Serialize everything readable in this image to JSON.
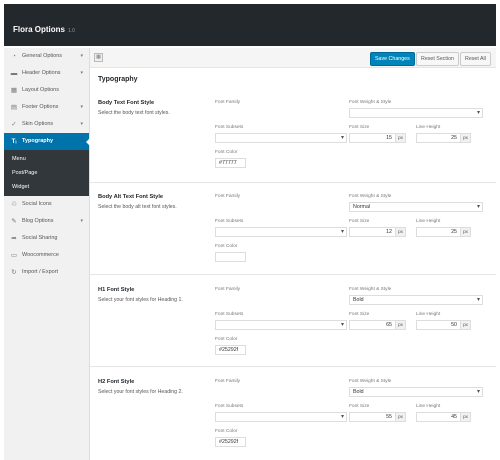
{
  "header": {
    "title": "Flora Options",
    "version": "1.0"
  },
  "sidebar": {
    "items": [
      {
        "label": "General Options",
        "icon": "gauge-icon",
        "glyph": "◔",
        "caret": "▾"
      },
      {
        "label": "Header Options",
        "icon": "header-icon",
        "glyph": "▬",
        "caret": "▾"
      },
      {
        "label": "Layout Options",
        "icon": "grid-icon",
        "glyph": "▦",
        "caret": ""
      },
      {
        "label": "Footer Options",
        "icon": "footer-icon",
        "glyph": "▤",
        "caret": "▾"
      },
      {
        "label": "Skin Options",
        "icon": "wrench-icon",
        "glyph": "✓",
        "caret": "▾"
      },
      {
        "label": "Typography",
        "icon": "text-icon",
        "glyph": "Tᵢ",
        "caret": ""
      },
      {
        "label": "Social Icons",
        "icon": "social-icon",
        "glyph": "♲",
        "caret": ""
      },
      {
        "label": "Blog Options",
        "icon": "blog-icon",
        "glyph": "✎",
        "caret": "▾"
      },
      {
        "label": "Social Sharing",
        "icon": "share-icon",
        "glyph": "➦",
        "caret": ""
      },
      {
        "label": "Woocommerce",
        "icon": "cart-icon",
        "glyph": "▭",
        "caret": ""
      },
      {
        "label": "Import / Export",
        "icon": "refresh-icon",
        "glyph": "↻",
        "caret": ""
      }
    ],
    "submenu": [
      "Menu",
      "Post/Page",
      "Widget"
    ]
  },
  "toolbar": {
    "save": "Save Changes",
    "reset_section": "Reset Section",
    "reset_all": "Reset All"
  },
  "section_title": "Typography",
  "labels": {
    "font_family": "Font Family",
    "font_weight_style": "Font Weight & Style",
    "font_subsets": "Font Subsets",
    "font_size": "Font Size",
    "line_height": "Line Height",
    "font_color": "Font Color",
    "unit": "px"
  },
  "blocks": [
    {
      "title": "Body Text Font Style",
      "desc": "Select the body text font styles.",
      "weight": "",
      "size": "15",
      "line_height": "25",
      "color": "#77777"
    },
    {
      "title": "Body Alt Text Font Style",
      "desc": "Select the body alt text font styles.",
      "weight": "Normal",
      "size": "12",
      "line_height": "25",
      "color": ""
    },
    {
      "title": "H1 Font Style",
      "desc": "Select your font styles for Heading 1.",
      "weight": "Bold",
      "size": "65",
      "line_height": "50",
      "color": "#25292f"
    },
    {
      "title": "H2 Font Style",
      "desc": "Select your font styles for Heading 2.",
      "weight": "Bold",
      "size": "55",
      "line_height": "45",
      "color": "#25292f"
    }
  ]
}
